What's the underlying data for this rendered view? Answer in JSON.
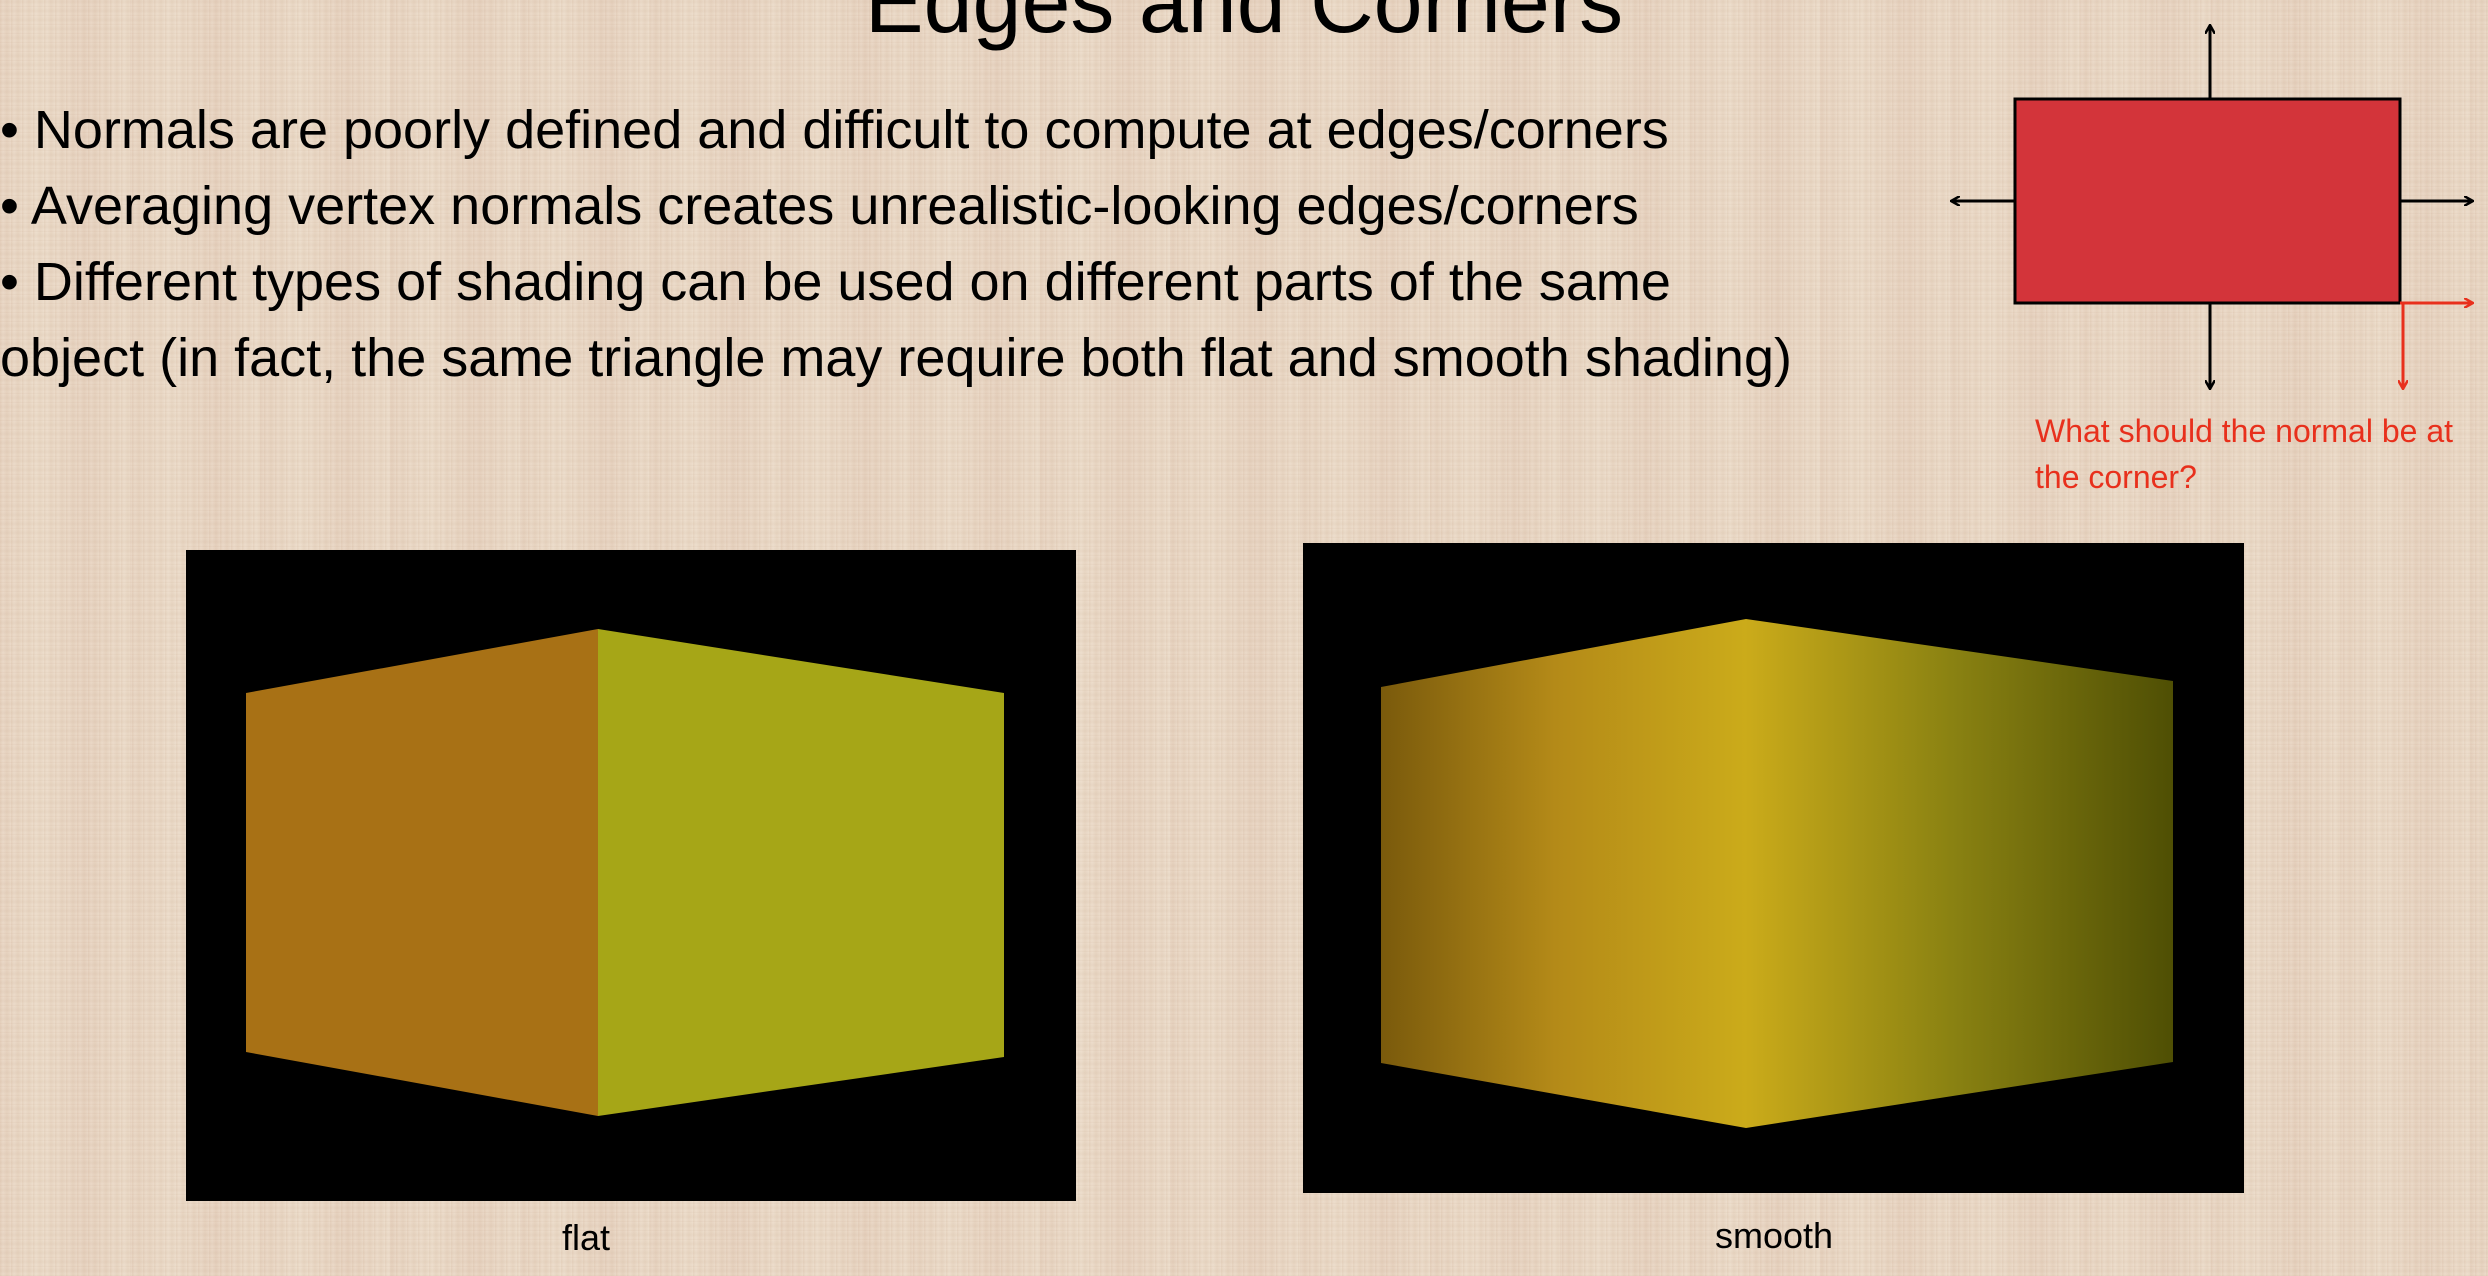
{
  "slide": {
    "title": "Edges and Corners",
    "bullets": [
      "• Normals are poorly defined and difficult to compute at edges/corners",
      "• Averaging vertex normals creates unrealistic-looking edges/corners",
      "• Different types of shading can be used on different parts of the same object (in fact, the same triangle may require both flat and smooth shading)"
    ]
  },
  "diagram": {
    "caption": "What should the normal be at the corner?",
    "box_color": "#d3343a",
    "arrow_color": "#000000",
    "highlight_color": "#e8301c"
  },
  "renders": [
    {
      "caption": "flat",
      "left_face_color": "#a87115",
      "right_face_color": "#a6a617"
    },
    {
      "caption": "smooth",
      "gradient": [
        "#7a5a0c",
        "#b48a18",
        "#cbab1a",
        "#8a8212",
        "#4f4f04"
      ]
    }
  ]
}
